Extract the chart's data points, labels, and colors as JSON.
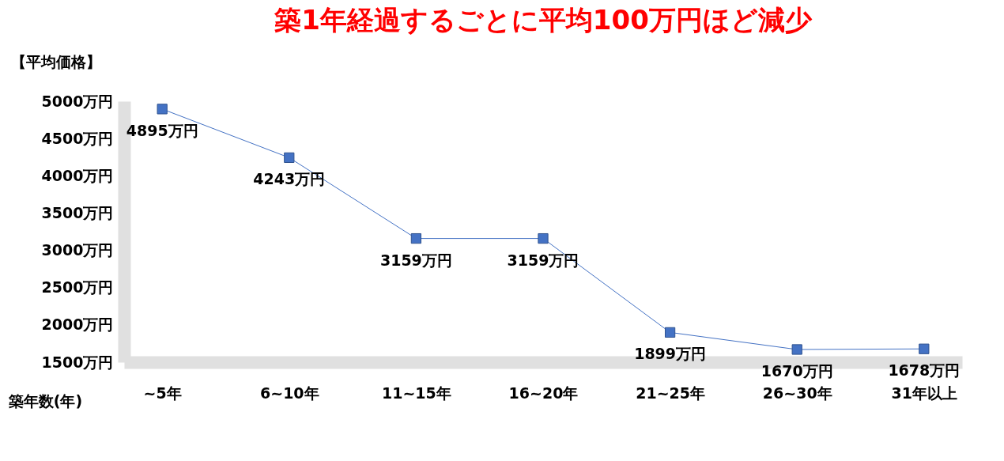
{
  "chart_data": {
    "type": "line",
    "title": "築1年経過するごとに平均100万円ほど減少",
    "xlabel": "築年数(年)",
    "ylabel": "【平均価格】",
    "categories": [
      "~5年",
      "6~10年",
      "11~15年",
      "16~20年",
      "21~25年",
      "26~30年",
      "31年以上"
    ],
    "series": [
      {
        "color": "#4472c4",
        "values": [
          4895,
          4243,
          3159,
          3159,
          1899,
          1670,
          1678
        ],
        "value_labels": [
          "4895万円",
          "4243万円",
          "3159万円",
          "3159万円",
          "1899万円",
          "1670万円",
          "1678万円"
        ]
      }
    ],
    "ylim": [
      1500,
      5000
    ],
    "yticks": [
      {
        "value": 1500,
        "label": "1500万円"
      },
      {
        "value": 2000,
        "label": "2000万円"
      },
      {
        "value": 2500,
        "label": "2500万円"
      },
      {
        "value": 3000,
        "label": "3000万円"
      },
      {
        "value": 3500,
        "label": "3500万円"
      },
      {
        "value": 4000,
        "label": "4000万円"
      },
      {
        "value": 4500,
        "label": "4500万円"
      },
      {
        "value": 5000,
        "label": "5000万円"
      }
    ],
    "marker": "square",
    "line_style": "solid",
    "grid": false
  }
}
